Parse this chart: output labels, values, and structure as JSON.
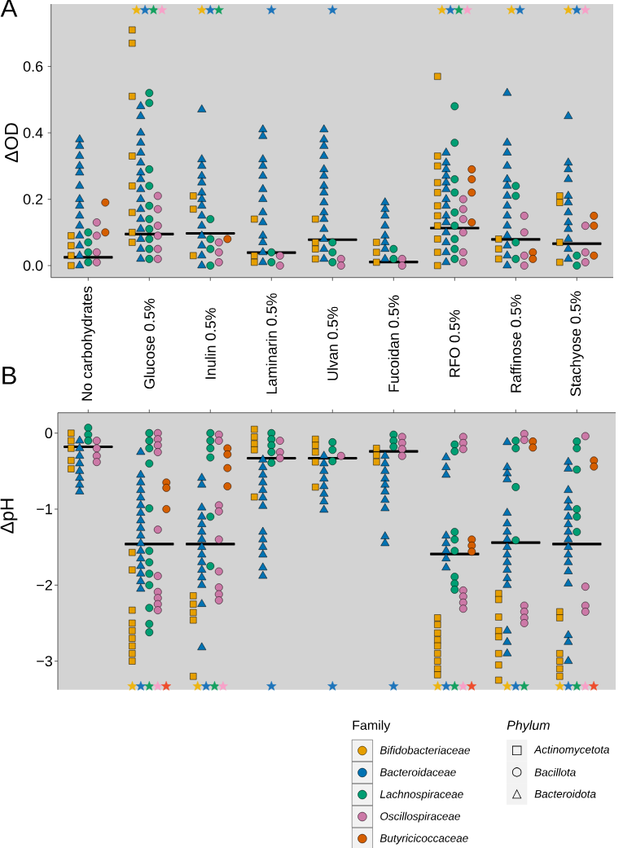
{
  "chart_data": [
    {
      "type": "scatter",
      "title": "A",
      "ylabel": "ΔOD",
      "categories": [
        "No carbohydrates",
        "Glucose 0.5%",
        "Inulin 0.5%",
        "Laminarin 0.5%",
        "Ulvan 0.5%",
        "Fucoidan 0.5%",
        "RFO 0.5%",
        "Raffinose 0.5%",
        "Stachyose 0.5%"
      ],
      "ylim": [
        -0.036,
        0.788
      ],
      "yticks": [
        {
          "value": 0,
          "label": "0.0"
        },
        {
          "value": 0.2,
          "label": "0.2"
        },
        {
          "value": 0.4,
          "label": "0.4"
        },
        {
          "value": 0.6,
          "label": "0.6"
        }
      ],
      "series": [
        {
          "color": "#E69F00",
          "marker": "square",
          "x": [
            "No carbohydrates",
            "No carbohydrates",
            "No carbohydrates",
            "No carbohydrates",
            "Glucose 0.5%",
            "Glucose 0.5%",
            "Glucose 0.5%",
            "Glucose 0.5%",
            "Glucose 0.5%",
            "Glucose 0.5%",
            "Glucose 0.5%",
            "Glucose 0.5%",
            "Inulin 0.5%",
            "Inulin 0.5%",
            "Inulin 0.5%",
            "Laminarin 0.5%",
            "Laminarin 0.5%",
            "Laminarin 0.5%",
            "Ulvan 0.5%",
            "Ulvan 0.5%",
            "Ulvan 0.5%",
            "Ulvan 0.5%",
            "Fucoidan 0.5%",
            "Fucoidan 0.5%",
            "Fucoidan 0.5%",
            "RFO 0.5%",
            "RFO 0.5%",
            "RFO 0.5%",
            "RFO 0.5%",
            "RFO 0.5%",
            "RFO 0.5%",
            "RFO 0.5%",
            "RFO 0.5%",
            "RFO 0.5%",
            "RFO 0.5%",
            "RFO 0.5%",
            "Raffinose 0.5%",
            "Raffinose 0.5%",
            "Raffinose 0.5%",
            "Stachyose 0.5%",
            "Stachyose 0.5%",
            "Stachyose 0.5%",
            "Stachyose 0.5%"
          ],
          "values": [
            0.09,
            0.06,
            0.03,
            0,
            0.71,
            0.67,
            0.51,
            0.33,
            0.24,
            0.16,
            0.1,
            0.07,
            0.21,
            0.17,
            0.03,
            0.14,
            0.03,
            0.01,
            0.14,
            0.07,
            0.05,
            0.02,
            0.07,
            0.04,
            0.01,
            0.57,
            0.33,
            0.3,
            0.25,
            0.22,
            0.18,
            0.15,
            0.12,
            0.08,
            0.04,
            0,
            0.08,
            0.05,
            0.02,
            0.21,
            0.19,
            0.07,
            0.01
          ]
        },
        {
          "color": "#0072B2",
          "marker": "triangle",
          "x": [
            "No carbohydrates",
            "No carbohydrates",
            "No carbohydrates",
            "No carbohydrates",
            "No carbohydrates",
            "No carbohydrates",
            "No carbohydrates",
            "No carbohydrates",
            "No carbohydrates",
            "No carbohydrates",
            "No carbohydrates",
            "No carbohydrates",
            "No carbohydrates",
            "No carbohydrates",
            "Glucose 0.5%",
            "Glucose 0.5%",
            "Glucose 0.5%",
            "Glucose 0.5%",
            "Glucose 0.5%",
            "Glucose 0.5%",
            "Glucose 0.5%",
            "Glucose 0.5%",
            "Glucose 0.5%",
            "Glucose 0.5%",
            "Glucose 0.5%",
            "Glucose 0.5%",
            "Glucose 0.5%",
            "Glucose 0.5%",
            "Glucose 0.5%",
            "Glucose 0.5%",
            "Inulin 0.5%",
            "Inulin 0.5%",
            "Inulin 0.5%",
            "Inulin 0.5%",
            "Inulin 0.5%",
            "Inulin 0.5%",
            "Inulin 0.5%",
            "Inulin 0.5%",
            "Inulin 0.5%",
            "Inulin 0.5%",
            "Inulin 0.5%",
            "Inulin 0.5%",
            "Inulin 0.5%",
            "Inulin 0.5%",
            "Laminarin 0.5%",
            "Laminarin 0.5%",
            "Laminarin 0.5%",
            "Laminarin 0.5%",
            "Laminarin 0.5%",
            "Laminarin 0.5%",
            "Laminarin 0.5%",
            "Laminarin 0.5%",
            "Laminarin 0.5%",
            "Laminarin 0.5%",
            "Laminarin 0.5%",
            "Laminarin 0.5%",
            "Laminarin 0.5%",
            "Ulvan 0.5%",
            "Ulvan 0.5%",
            "Ulvan 0.5%",
            "Ulvan 0.5%",
            "Ulvan 0.5%",
            "Ulvan 0.5%",
            "Ulvan 0.5%",
            "Ulvan 0.5%",
            "Ulvan 0.5%",
            "Ulvan 0.5%",
            "Ulvan 0.5%",
            "Ulvan 0.5%",
            "Ulvan 0.5%",
            "Ulvan 0.5%",
            "Ulvan 0.5%",
            "Fucoidan 0.5%",
            "Fucoidan 0.5%",
            "Fucoidan 0.5%",
            "Fucoidan 0.5%",
            "Fucoidan 0.5%",
            "Fucoidan 0.5%",
            "Fucoidan 0.5%",
            "Fucoidan 0.5%",
            "RFO 0.5%",
            "RFO 0.5%",
            "RFO 0.5%",
            "RFO 0.5%",
            "RFO 0.5%",
            "RFO 0.5%",
            "RFO 0.5%",
            "RFO 0.5%",
            "RFO 0.5%",
            "RFO 0.5%",
            "RFO 0.5%",
            "RFO 0.5%",
            "RFO 0.5%",
            "RFO 0.5%",
            "Raffinose 0.5%",
            "Raffinose 0.5%",
            "Raffinose 0.5%",
            "Raffinose 0.5%",
            "Raffinose 0.5%",
            "Raffinose 0.5%",
            "Raffinose 0.5%",
            "Raffinose 0.5%",
            "Raffinose 0.5%",
            "Raffinose 0.5%",
            "Raffinose 0.5%",
            "Raffinose 0.5%",
            "Raffinose 0.5%",
            "Raffinose 0.5%",
            "Stachyose 0.5%",
            "Stachyose 0.5%",
            "Stachyose 0.5%",
            "Stachyose 0.5%",
            "Stachyose 0.5%",
            "Stachyose 0.5%",
            "Stachyose 0.5%",
            "Stachyose 0.5%",
            "Stachyose 0.5%",
            "Stachyose 0.5%",
            "Stachyose 0.5%",
            "Stachyose 0.5%"
          ],
          "values": [
            0.38,
            0.36,
            0.33,
            0.3,
            0.28,
            0.24,
            0.2,
            0.18,
            0.15,
            0.12,
            0.09,
            0.06,
            0.03,
            0,
            0.48,
            0.45,
            0.4,
            0.37,
            0.34,
            0.31,
            0.28,
            0.26,
            0.23,
            0.2,
            0.17,
            0.14,
            0.11,
            0.08,
            0.05,
            0.02,
            0.47,
            0.32,
            0.3,
            0.27,
            0.25,
            0.22,
            0.2,
            0.18,
            0.15,
            0.12,
            0.09,
            0.06,
            0.03,
            0,
            0.41,
            0.39,
            0.32,
            0.3,
            0.27,
            0.23,
            0.2,
            0.16,
            0.13,
            0.09,
            0.07,
            0.04,
            0.01,
            0.41,
            0.38,
            0.36,
            0.33,
            0.29,
            0.27,
            0.24,
            0.22,
            0.19,
            0.16,
            0.14,
            0.11,
            0.08,
            0.05,
            0.02,
            0.19,
            0.17,
            0.15,
            0.12,
            0.09,
            0.07,
            0.05,
            0.02,
            0.34,
            0.31,
            0.29,
            0.27,
            0.25,
            0.23,
            0.2,
            0.18,
            0.15,
            0.13,
            0.1,
            0.07,
            0.04,
            0.01,
            0.52,
            0.37,
            0.34,
            0.3,
            0.26,
            0.24,
            0.21,
            0.18,
            0.15,
            0.12,
            0.09,
            0.06,
            0.03,
            0,
            0.45,
            0.31,
            0.29,
            0.26,
            0.21,
            0.19,
            0.16,
            0.13,
            0.11,
            0.08,
            0.05,
            0.02
          ]
        },
        {
          "color": "#009E73",
          "marker": "circle",
          "x": [
            "No carbohydrates",
            "No carbohydrates",
            "No carbohydrates",
            "No carbohydrates",
            "Glucose 0.5%",
            "Glucose 0.5%",
            "Glucose 0.5%",
            "Glucose 0.5%",
            "Glucose 0.5%",
            "Glucose 0.5%",
            "Glucose 0.5%",
            "Glucose 0.5%",
            "Glucose 0.5%",
            "Glucose 0.5%",
            "Inulin 0.5%",
            "Inulin 0.5%",
            "Inulin 0.5%",
            "Inulin 0.5%",
            "Laminarin 0.5%",
            "Laminarin 0.5%",
            "Ulvan 0.5%",
            "Ulvan 0.5%",
            "Ulvan 0.5%",
            "Fucoidan 0.5%",
            "Fucoidan 0.5%",
            "RFO 0.5%",
            "RFO 0.5%",
            "RFO 0.5%",
            "RFO 0.5%",
            "RFO 0.5%",
            "RFO 0.5%",
            "RFO 0.5%",
            "RFO 0.5%",
            "RFO 0.5%",
            "Raffinose 0.5%",
            "Raffinose 0.5%",
            "Raffinose 0.5%",
            "Raffinose 0.5%",
            "Stachyose 0.5%",
            "Stachyose 0.5%"
          ],
          "values": [
            0.1,
            0.07,
            0.04,
            0.01,
            0.52,
            0.49,
            0.29,
            0.24,
            0.18,
            0.14,
            0.11,
            0.08,
            0.05,
            0.02,
            0.14,
            0.08,
            0.05,
            0,
            0.04,
            0.01,
            0.07,
            0.04,
            0.01,
            0.05,
            0.02,
            0.48,
            0.37,
            0.26,
            0.22,
            0.16,
            0.12,
            0.08,
            0.05,
            0.02,
            0.24,
            0.21,
            0.07,
            0.02,
            0.03,
            0
          ]
        },
        {
          "color": "#CC79A7",
          "marker": "circle",
          "x": [
            "No carbohydrates",
            "No carbohydrates",
            "No carbohydrates",
            "No carbohydrates",
            "Glucose 0.5%",
            "Glucose 0.5%",
            "Glucose 0.5%",
            "Glucose 0.5%",
            "Glucose 0.5%",
            "Glucose 0.5%",
            "Inulin 0.5%",
            "Inulin 0.5%",
            "Inulin 0.5%",
            "Laminarin 0.5%",
            "Laminarin 0.5%",
            "Ulvan 0.5%",
            "Ulvan 0.5%",
            "Fucoidan 0.5%",
            "Fucoidan 0.5%",
            "RFO 0.5%",
            "RFO 0.5%",
            "RFO 0.5%",
            "RFO 0.5%",
            "RFO 0.5%",
            "RFO 0.5%",
            "Raffinose 0.5%",
            "Raffinose 0.5%",
            "Raffinose 0.5%",
            "Raffinose 0.5%",
            "Stachyose 0.5%",
            "Stachyose 0.5%",
            "Stachyose 0.5%"
          ],
          "values": [
            0.13,
            0.09,
            0.04,
            0.01,
            0.21,
            0.17,
            0.12,
            0.09,
            0.05,
            0.02,
            0.07,
            0.04,
            0.01,
            0.03,
            0,
            0.02,
            0,
            0.02,
            0,
            0.2,
            0.17,
            0.14,
            0.1,
            0.04,
            0.01,
            0.15,
            0.1,
            0.03,
            0,
            0.12,
            0.04,
            0.01
          ]
        },
        {
          "color": "#D55E00",
          "marker": "circle",
          "x": [
            "No carbohydrates",
            "No carbohydrates",
            "Inulin 0.5%",
            "RFO 0.5%",
            "RFO 0.5%",
            "RFO 0.5%",
            "RFO 0.5%",
            "Raffinose 0.5%",
            "Raffinose 0.5%",
            "Stachyose 0.5%",
            "Stachyose 0.5%",
            "Stachyose 0.5%"
          ],
          "values": [
            0.19,
            0.1,
            0.08,
            0.29,
            0.26,
            0.22,
            0.13,
            0.04,
            0.02,
            0.15,
            0.12,
            0.03
          ]
        },
        {
          "type": "box",
          "color": "#000000",
          "boxes": [
            {
              "low": 0.025,
              "q1": 0.025,
              "median": 0.025,
              "q3": 0.025,
              "high": 0.025
            },
            {
              "low": 0.095,
              "q1": 0.095,
              "median": 0.095,
              "q3": 0.095,
              "high": 0.095
            },
            {
              "low": 0.097,
              "q1": 0.097,
              "median": 0.097,
              "q3": 0.097,
              "high": 0.097
            },
            {
              "low": 0.039,
              "q1": 0.039,
              "median": 0.039,
              "q3": 0.039,
              "high": 0.039
            },
            {
              "low": 0.078,
              "q1": 0.078,
              "median": 0.078,
              "q3": 0.078,
              "high": 0.078
            },
            {
              "low": 0.011,
              "q1": 0.011,
              "median": 0.011,
              "q3": 0.011,
              "high": 0.011
            },
            {
              "low": 0.113,
              "q1": 0.113,
              "median": 0.113,
              "q3": 0.113,
              "high": 0.113
            },
            {
              "low": 0.079,
              "q1": 0.079,
              "median": 0.079,
              "q3": 0.079,
              "high": 0.079
            },
            {
              "low": 0.066,
              "q1": 0.066,
              "median": 0.066,
              "q3": 0.066,
              "high": 0.066
            }
          ]
        },
        {
          "color": "#EDB512",
          "marker": "star",
          "x": [
            "Glucose 0.5%",
            "Inulin 0.5%",
            "RFO 0.5%",
            "Raffinose 0.5%",
            "Stachyose 0.5%"
          ],
          "values": [
            0.77,
            0.77,
            0.77,
            0.77,
            0.77
          ]
        },
        {
          "color": "#1D74BA",
          "marker": "star",
          "x": [
            "Glucose 0.5%",
            "Inulin 0.5%",
            "Laminarin 0.5%",
            "Ulvan 0.5%",
            "RFO 0.5%",
            "Raffinose 0.5%",
            "Stachyose 0.5%"
          ],
          "values": [
            0.77,
            0.77,
            0.77,
            0.77,
            0.77,
            0.77,
            0.77
          ]
        },
        {
          "color": "#14A05F",
          "marker": "star",
          "x": [
            "Glucose 0.5%",
            "Inulin 0.5%",
            "RFO 0.5%"
          ],
          "values": [
            0.77,
            0.77,
            0.77
          ]
        },
        {
          "color": "#F7A1C8",
          "marker": "star",
          "x": [
            "Glucose 0.5%",
            "RFO 0.5%",
            "Stachyose 0.5%"
          ],
          "values": [
            0.77,
            0.77,
            0.77
          ]
        }
      ]
    },
    {
      "type": "scatter",
      "title": "B",
      "ylabel": "ΔpH",
      "categories": [
        "No carbohydrates",
        "Glucose 0.5%",
        "Inulin 0.5%",
        "Laminarin 0.5%",
        "Ulvan 0.5%",
        "Fucoidan 0.5%",
        "RFO 0.5%",
        "Raffinose 0.5%",
        "Stachyose 0.5%"
      ],
      "tick_labels": "y",
      "ylim": [
        -3.376,
        0.268
      ],
      "yticks": [
        0,
        {
          "value": -1,
          "label": "−1"
        },
        {
          "value": -2,
          "label": "−2"
        },
        {
          "value": -3,
          "label": "−3"
        }
      ],
      "legend": "bottom",
      "legend_title": "Family",
      "series": [
        {
          "name": "Bifidobacteriaceae",
          "color": "#E69F00",
          "marker": "square",
          "x": [
            "No carbohydrates",
            "No carbohydrates",
            "No carbohydrates",
            "No carbohydrates",
            "No carbohydrates",
            "Glucose 0.5%",
            "Glucose 0.5%",
            "Glucose 0.5%",
            "Glucose 0.5%",
            "Glucose 0.5%",
            "Glucose 0.5%",
            "Glucose 0.5%",
            "Glucose 0.5%",
            "Glucose 0.5%",
            "Inulin 0.5%",
            "Inulin 0.5%",
            "Inulin 0.5%",
            "Inulin 0.5%",
            "Inulin 0.5%",
            "Laminarin 0.5%",
            "Laminarin 0.5%",
            "Laminarin 0.5%",
            "Laminarin 0.5%",
            "Laminarin 0.5%",
            "Ulvan 0.5%",
            "Ulvan 0.5%",
            "Ulvan 0.5%",
            "Ulvan 0.5%",
            "Ulvan 0.5%",
            "Fucoidan 0.5%",
            "Fucoidan 0.5%",
            "Fucoidan 0.5%",
            "RFO 0.5%",
            "RFO 0.5%",
            "RFO 0.5%",
            "RFO 0.5%",
            "RFO 0.5%",
            "RFO 0.5%",
            "RFO 0.5%",
            "RFO 0.5%",
            "RFO 0.5%",
            "Raffinose 0.5%",
            "Raffinose 0.5%",
            "Raffinose 0.5%",
            "Raffinose 0.5%",
            "Raffinose 0.5%",
            "Raffinose 0.5%",
            "Raffinose 0.5%",
            "Raffinose 0.5%",
            "Stachyose 0.5%",
            "Stachyose 0.5%",
            "Stachyose 0.5%",
            "Stachyose 0.5%",
            "Stachyose 0.5%",
            "Stachyose 0.5%"
          ],
          "values": [
            0,
            -0.1,
            -0.2,
            -0.36,
            -0.47,
            -1.57,
            -1.8,
            -2.33,
            -2.5,
            -2.6,
            -2.7,
            -2.8,
            -2.9,
            -3.0,
            -2.14,
            -2.25,
            -2.36,
            -2.46,
            -3.2,
            0.05,
            -0.05,
            -0.14,
            -0.22,
            -0.84,
            -0.08,
            -0.16,
            -0.25,
            -0.38,
            -0.71,
            -0.2,
            -0.29,
            -0.38,
            -2.43,
            -2.52,
            -2.63,
            -2.72,
            -2.8,
            -2.9,
            -3.0,
            -3.1,
            -3.18,
            -2.11,
            -2.19,
            -2.42,
            -2.6,
            -2.68,
            -2.9,
            -3.05,
            -3.25,
            -2.35,
            -2.43,
            -2.9,
            -3.0,
            -3.1,
            -3.2
          ]
        },
        {
          "name": "Bacteroidaceae",
          "color": "#0072B2",
          "marker": "triangle",
          "x": [
            "No carbohydrates",
            "No carbohydrates",
            "No carbohydrates",
            "No carbohydrates",
            "No carbohydrates",
            "No carbohydrates",
            "No carbohydrates",
            "No carbohydrates",
            "Glucose 0.5%",
            "Glucose 0.5%",
            "Glucose 0.5%",
            "Glucose 0.5%",
            "Glucose 0.5%",
            "Glucose 0.5%",
            "Glucose 0.5%",
            "Glucose 0.5%",
            "Glucose 0.5%",
            "Glucose 0.5%",
            "Glucose 0.5%",
            "Glucose 0.5%",
            "Glucose 0.5%",
            "Glucose 0.5%",
            "Glucose 0.5%",
            "Glucose 0.5%",
            "Glucose 0.5%",
            "Inulin 0.5%",
            "Inulin 0.5%",
            "Inulin 0.5%",
            "Inulin 0.5%",
            "Inulin 0.5%",
            "Inulin 0.5%",
            "Inulin 0.5%",
            "Inulin 0.5%",
            "Inulin 0.5%",
            "Inulin 0.5%",
            "Inulin 0.5%",
            "Inulin 0.5%",
            "Inulin 0.5%",
            "Inulin 0.5%",
            "Inulin 0.5%",
            "Laminarin 0.5%",
            "Laminarin 0.5%",
            "Laminarin 0.5%",
            "Laminarin 0.5%",
            "Laminarin 0.5%",
            "Laminarin 0.5%",
            "Laminarin 0.5%",
            "Laminarin 0.5%",
            "Laminarin 0.5%",
            "Laminarin 0.5%",
            "Laminarin 0.5%",
            "Laminarin 0.5%",
            "Laminarin 0.5%",
            "Ulvan 0.5%",
            "Ulvan 0.5%",
            "Ulvan 0.5%",
            "Ulvan 0.5%",
            "Ulvan 0.5%",
            "Ulvan 0.5%",
            "Ulvan 0.5%",
            "Ulvan 0.5%",
            "Fucoidan 0.5%",
            "Fucoidan 0.5%",
            "Fucoidan 0.5%",
            "Fucoidan 0.5%",
            "Fucoidan 0.5%",
            "Fucoidan 0.5%",
            "Fucoidan 0.5%",
            "Fucoidan 0.5%",
            "Fucoidan 0.5%",
            "Fucoidan 0.5%",
            "RFO 0.5%",
            "RFO 0.5%",
            "RFO 0.5%",
            "RFO 0.5%",
            "RFO 0.5%",
            "RFO 0.5%",
            "RFO 0.5%",
            "RFO 0.5%",
            "Raffinose 0.5%",
            "Raffinose 0.5%",
            "Raffinose 0.5%",
            "Raffinose 0.5%",
            "Raffinose 0.5%",
            "Raffinose 0.5%",
            "Raffinose 0.5%",
            "Raffinose 0.5%",
            "Raffinose 0.5%",
            "Raffinose 0.5%",
            "Raffinose 0.5%",
            "Raffinose 0.5%",
            "Raffinose 0.5%",
            "Raffinose 0.5%",
            "Raffinose 0.5%",
            "Raffinose 0.5%",
            "Raffinose 0.5%",
            "Stachyose 0.5%",
            "Stachyose 0.5%",
            "Stachyose 0.5%",
            "Stachyose 0.5%",
            "Stachyose 0.5%",
            "Stachyose 0.5%",
            "Stachyose 0.5%",
            "Stachyose 0.5%",
            "Stachyose 0.5%",
            "Stachyose 0.5%",
            "Stachyose 0.5%",
            "Stachyose 0.5%",
            "Stachyose 0.5%",
            "Stachyose 0.5%",
            "Stachyose 0.5%",
            "Stachyose 0.5%",
            "Stachyose 0.5%"
          ],
          "values": [
            -0.1,
            -0.2,
            -0.3,
            -0.4,
            -0.5,
            -0.59,
            -0.68,
            -0.77,
            -0.25,
            -0.55,
            -0.65,
            -0.75,
            -0.85,
            -0.95,
            -1.05,
            -1.15,
            -1.25,
            -1.35,
            -1.45,
            -1.55,
            -1.65,
            -1.75,
            -1.85,
            -1.95,
            -2.05,
            -0.59,
            -0.68,
            -0.98,
            -1.1,
            -1.2,
            -1.3,
            -1.4,
            -1.5,
            -1.6,
            -1.7,
            -1.8,
            -1.9,
            -2.0,
            -2.25,
            -2.82,
            -0.35,
            -0.45,
            -0.55,
            -0.65,
            -0.75,
            -0.85,
            -0.96,
            -1.3,
            -1.4,
            -1.5,
            -1.6,
            -1.77,
            -1.88,
            -0.3,
            -0.4,
            -0.5,
            -0.6,
            -0.7,
            -0.8,
            -0.9,
            -1.01,
            -0.3,
            -0.4,
            -0.5,
            -0.6,
            -0.68,
            -0.77,
            -0.88,
            -0.99,
            -1.36,
            -1.45,
            -0.32,
            -0.45,
            -0.55,
            -1.35,
            -1.45,
            -1.55,
            -1.65,
            -1.77,
            -0.12,
            -0.45,
            -0.53,
            -0.61,
            -1.05,
            -1.19,
            -1.3,
            -1.4,
            -1.5,
            -1.6,
            -1.7,
            -1.8,
            -1.91,
            -2.0,
            -2.6,
            -2.75,
            -2.9,
            -0.38,
            -0.47,
            -0.75,
            -0.89,
            -0.98,
            -1.1,
            -1.2,
            -1.3,
            -1.4,
            -1.5,
            -1.6,
            -1.7,
            -1.82,
            -1.98,
            -2.66,
            -2.75,
            -3.0
          ]
        },
        {
          "name": "Lachnospiraceae",
          "color": "#009E73",
          "marker": "circle",
          "x": [
            "No carbohydrates",
            "No carbohydrates",
            "No carbohydrates",
            "Glucose 0.5%",
            "Glucose 0.5%",
            "Glucose 0.5%",
            "Glucose 0.5%",
            "Glucose 0.5%",
            "Glucose 0.5%",
            "Glucose 0.5%",
            "Glucose 0.5%",
            "Glucose 0.5%",
            "Glucose 0.5%",
            "Glucose 0.5%",
            "Glucose 0.5%",
            "Inulin 0.5%",
            "Inulin 0.5%",
            "Inulin 0.5%",
            "Inulin 0.5%",
            "Inulin 0.5%",
            "Inulin 0.5%",
            "Laminarin 0.5%",
            "Laminarin 0.5%",
            "Laminarin 0.5%",
            "Laminarin 0.5%",
            "Laminarin 0.5%",
            "Ulvan 0.5%",
            "Ulvan 0.5%",
            "Ulvan 0.5%",
            "Fucoidan 0.5%",
            "Fucoidan 0.5%",
            "Fucoidan 0.5%",
            "RFO 0.5%",
            "RFO 0.5%",
            "RFO 0.5%",
            "RFO 0.5%",
            "RFO 0.5%",
            "RFO 0.5%",
            "RFO 0.5%",
            "RFO 0.5%",
            "Raffinose 0.5%",
            "Raffinose 0.5%",
            "Raffinose 0.5%",
            "Raffinose 0.5%",
            "Stachyose 0.5%",
            "Stachyose 0.5%",
            "Stachyose 0.5%",
            "Stachyose 0.5%",
            "Stachyose 0.5%",
            "Stachyose 0.5%"
          ],
          "values": [
            0.07,
            -0.02,
            -0.1,
            0,
            -0.1,
            -0.2,
            -0.4,
            -0.99,
            -1.55,
            -1.7,
            -1.85,
            -2.0,
            -2.3,
            -2.51,
            -2.62,
            0,
            -0.1,
            -0.2,
            -0.32,
            -1.1,
            -1.75,
            0,
            -0.08,
            -0.16,
            -0.25,
            -0.39,
            -0.12,
            -0.22,
            -0.37,
            -0.02,
            -0.1,
            -0.18,
            -0.15,
            -0.24,
            -1.3,
            -1.4,
            -1.55,
            -1.89,
            -1.98,
            -2.06,
            -0.1,
            -0.2,
            -0.71,
            -1.41,
            -0.11,
            -0.2,
            -0.48,
            -1.0,
            -1.1,
            -1.3
          ]
        },
        {
          "name": "Oscillospiraceae",
          "color": "#CC79A7",
          "marker": "circle",
          "x": [
            "No carbohydrates",
            "No carbohydrates",
            "No carbohydrates",
            "No carbohydrates",
            "Glucose 0.5%",
            "Glucose 0.5%",
            "Glucose 0.5%",
            "Glucose 0.5%",
            "Glucose 0.5%",
            "Glucose 0.5%",
            "Glucose 0.5%",
            "Glucose 0.5%",
            "Glucose 0.5%",
            "Glucose 0.5%",
            "Inulin 0.5%",
            "Inulin 0.5%",
            "Inulin 0.5%",
            "Inulin 0.5%",
            "Inulin 0.5%",
            "Inulin 0.5%",
            "Inulin 0.5%",
            "Inulin 0.5%",
            "Inulin 0.5%",
            "Laminarin 0.5%",
            "Laminarin 0.5%",
            "Laminarin 0.5%",
            "Ulvan 0.5%",
            "Fucoidan 0.5%",
            "Fucoidan 0.5%",
            "Fucoidan 0.5%",
            "Fucoidan 0.5%",
            "RFO 0.5%",
            "RFO 0.5%",
            "RFO 0.5%",
            "RFO 0.5%",
            "RFO 0.5%",
            "RFO 0.5%",
            "RFO 0.5%",
            "Raffinose 0.5%",
            "Raffinose 0.5%",
            "Raffinose 0.5%",
            "Raffinose 0.5%",
            "Raffinose 0.5%",
            "Raffinose 0.5%",
            "Stachyose 0.5%",
            "Stachyose 0.5%",
            "Stachyose 0.5%",
            "Stachyose 0.5%"
          ],
          "values": [
            -0.1,
            -0.2,
            -0.3,
            -0.38,
            0,
            -0.08,
            -0.16,
            -0.25,
            -1.27,
            -1.88,
            -2.09,
            -2.17,
            -2.25,
            -2.33,
            -0.02,
            -0.1,
            -0.95,
            -1.03,
            -1.4,
            -1.82,
            -2.03,
            -2.12,
            -2.2,
            -0.1,
            -0.25,
            -0.33,
            -0.3,
            -0.05,
            -0.13,
            -0.21,
            -0.3,
            -0.05,
            -0.13,
            -0.21,
            -2.07,
            -2.15,
            -2.23,
            -2.31,
            -0.01,
            -0.09,
            -2.27,
            -2.35,
            -2.43,
            -2.5,
            -0.04,
            -2.02,
            -2.27,
            -2.35
          ]
        },
        {
          "name": "Butyricicoccaceae",
          "color": "#D55E00",
          "marker": "circle",
          "x": [
            "Glucose 0.5%",
            "Glucose 0.5%",
            "Glucose 0.5%",
            "Inulin 0.5%",
            "Inulin 0.5%",
            "Inulin 0.5%",
            "Inulin 0.5%",
            "RFO 0.5%",
            "RFO 0.5%",
            "RFO 0.5%",
            "Raffinose 0.5%",
            "Raffinose 0.5%",
            "Stachyose 0.5%",
            "Stachyose 0.5%"
          ],
          "values": [
            -0.65,
            -0.72,
            -1.0,
            -0.2,
            -0.28,
            -0.46,
            -0.7,
            -1.4,
            -1.48,
            -1.56,
            -0.11,
            -0.19,
            -0.36,
            -0.44
          ]
        },
        {
          "type": "box",
          "color": "#000000",
          "boxes": [
            {
              "low": -0.18,
              "q1": -0.18,
              "median": -0.18,
              "q3": -0.18,
              "high": -0.18
            },
            {
              "low": -1.46,
              "q1": -1.46,
              "median": -1.46,
              "q3": -1.46,
              "high": -1.46
            },
            {
              "low": -1.46,
              "q1": -1.46,
              "median": -1.46,
              "q3": -1.46,
              "high": -1.46
            },
            {
              "low": -0.33,
              "q1": -0.33,
              "median": -0.33,
              "q3": -0.33,
              "high": -0.33
            },
            {
              "low": -0.33,
              "q1": -0.33,
              "median": -0.33,
              "q3": -0.33,
              "high": -0.33
            },
            {
              "low": -0.24,
              "q1": -0.24,
              "median": -0.24,
              "q3": -0.24,
              "high": -0.24
            },
            {
              "low": -1.59,
              "q1": -1.59,
              "median": -1.59,
              "q3": -1.59,
              "high": -1.59
            },
            {
              "low": -1.44,
              "q1": -1.44,
              "median": -1.44,
              "q3": -1.44,
              "high": -1.44
            },
            {
              "low": -1.46,
              "q1": -1.46,
              "median": -1.46,
              "q3": -1.46,
              "high": -1.46
            }
          ]
        },
        {
          "color": "#EDB512",
          "marker": "star",
          "x": [
            "Glucose 0.5%",
            "Inulin 0.5%",
            "RFO 0.5%",
            "Raffinose 0.5%",
            "Stachyose 0.5%"
          ],
          "values": [
            -3.33,
            -3.33,
            -3.33,
            -3.33,
            -3.33
          ]
        },
        {
          "color": "#1D74BA",
          "marker": "star",
          "x": [
            "Glucose 0.5%",
            "Inulin 0.5%",
            "Laminarin 0.5%",
            "Ulvan 0.5%",
            "Fucoidan 0.5%",
            "RFO 0.5%",
            "Raffinose 0.5%",
            "Stachyose 0.5%"
          ],
          "values": [
            -3.33,
            -3.33,
            -3.33,
            -3.33,
            -3.33,
            -3.33,
            -3.33,
            -3.33
          ]
        },
        {
          "color": "#14A05F",
          "marker": "star",
          "x": [
            "Glucose 0.5%",
            "Inulin 0.5%",
            "RFO 0.5%",
            "Raffinose 0.5%",
            "Stachyose 0.5%"
          ],
          "values": [
            -3.33,
            -3.33,
            -3.33,
            -3.33,
            -3.33
          ]
        },
        {
          "color": "#F7A1C8",
          "marker": "star",
          "x": [
            "Glucose 0.5%",
            "Inulin 0.5%",
            "RFO 0.5%",
            "Stachyose 0.5%"
          ],
          "values": [
            -3.33,
            -3.33,
            -3.33,
            -3.33
          ]
        },
        {
          "color": "#EE4C2C",
          "marker": "star",
          "x": [
            "Glucose 0.5%",
            "RFO 0.5%",
            "Stachyose 0.5%"
          ],
          "values": [
            -3.33,
            -3.33,
            -3.33
          ]
        }
      ],
      "annotations": [
        "Phylum",
        "□",
        "Actinomycetota",
        "○",
        "Bacillota",
        "△",
        "Bacteroidota"
      ]
    }
  ]
}
